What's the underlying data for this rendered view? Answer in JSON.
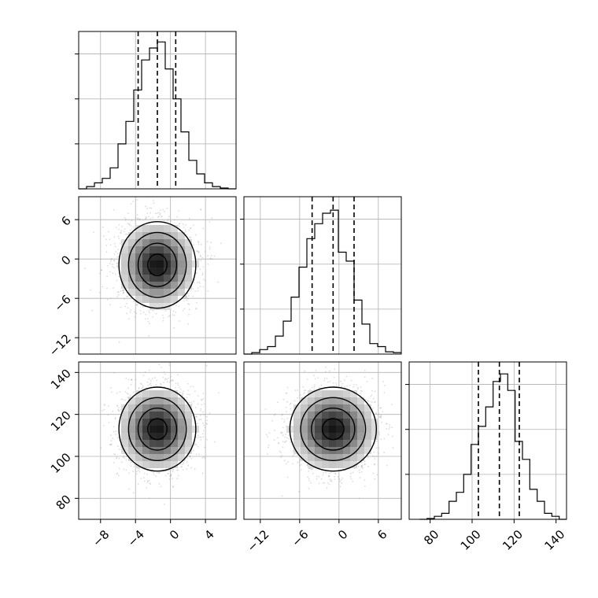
{
  "chart_data": {
    "type": "corner",
    "title": "",
    "parameters": [
      {
        "label": "",
        "range": [
          -10.5,
          7.5
        ],
        "ticks": [
          -8,
          -4,
          0,
          4
        ],
        "tick_labels": [
          "−8",
          "−4",
          "0",
          "4"
        ]
      },
      {
        "label": "",
        "range": [
          -14.5,
          9.5
        ],
        "ticks": [
          -12,
          -6,
          0,
          6
        ],
        "tick_labels": [
          "−12",
          "−6",
          "0",
          "6"
        ]
      },
      {
        "label": "",
        "range": [
          70,
          145
        ],
        "ticks": [
          80,
          100,
          120,
          140
        ],
        "tick_labels": [
          "80",
          "100",
          "120",
          "140"
        ]
      }
    ],
    "histograms": [
      {
        "parameter": 0,
        "bin_edges": [
          -10.5,
          -9.6,
          -8.7,
          -7.8,
          -6.9,
          -6.0,
          -5.1,
          -4.2,
          -3.3,
          -2.4,
          -1.5,
          -0.6,
          0.3,
          1.2,
          2.1,
          3.0,
          3.9,
          4.8,
          5.7,
          6.6,
          7.5
        ],
        "counts": [
          0.0,
          0.015,
          0.04,
          0.07,
          0.14,
          0.3,
          0.45,
          0.66,
          0.86,
          0.94,
          0.98,
          0.8,
          0.6,
          0.38,
          0.19,
          0.1,
          0.04,
          0.015,
          0.005,
          0.0
        ],
        "quantiles": [
          -3.7,
          -1.5,
          0.6
        ]
      },
      {
        "parameter": 1,
        "bin_edges": [
          -14.5,
          -13.3,
          -12.1,
          -10.9,
          -9.7,
          -8.5,
          -7.3,
          -6.1,
          -4.9,
          -3.7,
          -2.5,
          -1.3,
          -0.1,
          1.1,
          2.3,
          3.5,
          4.7,
          5.9,
          7.1,
          8.3,
          9.5
        ],
        "counts": [
          0.0,
          0.01,
          0.03,
          0.05,
          0.12,
          0.22,
          0.38,
          0.58,
          0.77,
          0.87,
          0.94,
          0.96,
          0.68,
          0.62,
          0.36,
          0.2,
          0.07,
          0.05,
          0.015,
          0.01
        ],
        "quantiles": [
          -4.1,
          -0.9,
          2.3
        ]
      },
      {
        "parameter": 2,
        "bin_edges": [
          75,
          78.5,
          82,
          85.5,
          89,
          92.5,
          96,
          99.5,
          103,
          106.5,
          110,
          113.5,
          117,
          120.5,
          124,
          127.5,
          131,
          134.5,
          138,
          141.5,
          145
        ],
        "counts": [
          0.0,
          0.005,
          0.02,
          0.04,
          0.12,
          0.18,
          0.3,
          0.5,
          0.62,
          0.75,
          0.92,
          0.97,
          0.86,
          0.52,
          0.4,
          0.2,
          0.12,
          0.04,
          0.02,
          0.0
        ],
        "quantiles": [
          103,
          113,
          122.5
        ]
      }
    ],
    "density_2d": [
      {
        "x_parameter": 0,
        "y_parameter": 1,
        "center": [
          -1.5,
          -0.9
        ],
        "sigma": [
          2.2,
          3.3
        ]
      },
      {
        "x_parameter": 0,
        "y_parameter": 2,
        "center": [
          -1.5,
          113
        ],
        "sigma": [
          2.2,
          10
        ]
      },
      {
        "x_parameter": 1,
        "y_parameter": 2,
        "center": [
          -0.9,
          113
        ],
        "sigma": [
          3.3,
          10
        ]
      }
    ],
    "contour_levels_sigma": [
      0.5,
      1.0,
      1.5,
      2.0
    ],
    "grid": true,
    "quantile_line_style": "dashed"
  }
}
